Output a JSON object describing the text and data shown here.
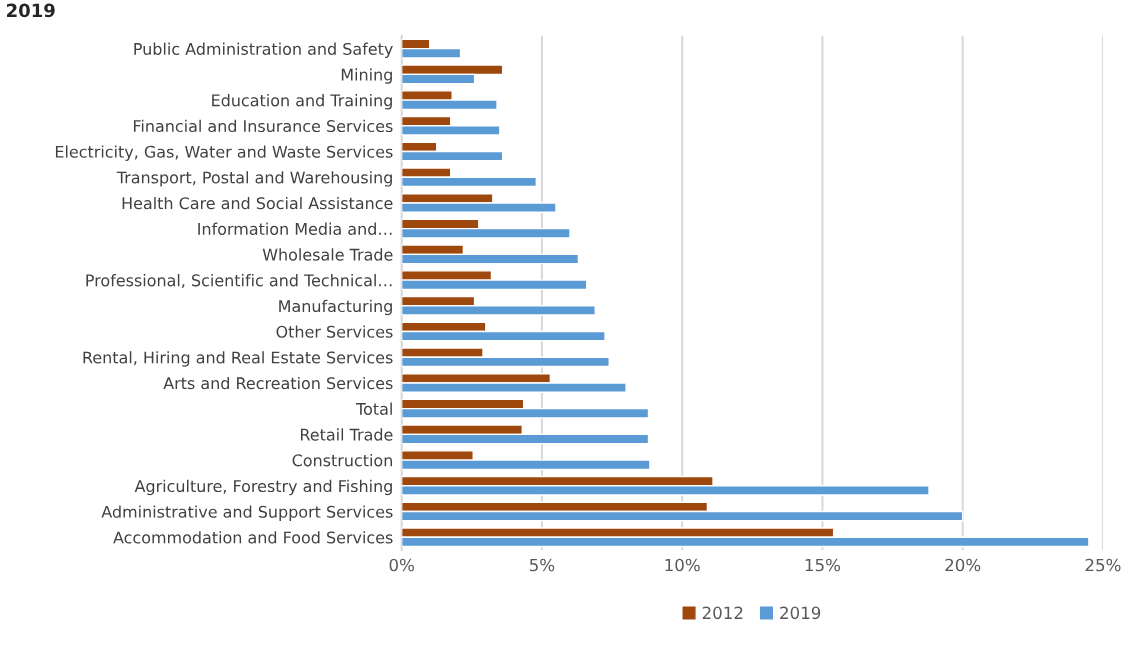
{
  "chart_data": {
    "type": "bar",
    "orientation": "horizontal",
    "title": "2019",
    "categories": [
      "Public Administration and Safety",
      "Mining",
      "Education and Training",
      "Financial and Insurance Services",
      "Electricity, Gas, Water and Waste Services",
      "Transport, Postal and Warehousing",
      "Health Care and Social Assistance",
      "Information Media and…",
      "Wholesale Trade",
      "Professional, Scientific and Technical…",
      "Manufacturing",
      "Other Services",
      "Rental, Hiring and Real Estate Services",
      "Arts and Recreation Services",
      "Total",
      "Retail Trade",
      "Construction",
      "Agriculture, Forestry and Fishing",
      "Administrative and Support Services",
      "Accommodation and Food Services"
    ],
    "series": [
      {
        "name": "2012",
        "color": "#9e480e",
        "values": [
          1.0,
          3.6,
          1.8,
          1.75,
          1.25,
          1.75,
          3.25,
          2.75,
          2.2,
          3.2,
          2.6,
          3.0,
          2.9,
          5.3,
          4.35,
          4.3,
          2.55,
          11.1,
          10.9,
          15.4
        ]
      },
      {
        "name": "2019",
        "color": "#5b9bd5",
        "values": [
          2.1,
          2.6,
          3.4,
          3.5,
          3.6,
          4.8,
          5.5,
          6.0,
          6.3,
          6.6,
          6.9,
          7.25,
          7.4,
          8.0,
          8.8,
          8.8,
          8.85,
          18.8,
          20.0,
          24.5
        ]
      }
    ],
    "xlim": [
      0,
      25
    ],
    "xticks": [
      {
        "value": 0,
        "label": "0%"
      },
      {
        "value": 5,
        "label": "5%"
      },
      {
        "value": 10,
        "label": "10%"
      },
      {
        "value": 15,
        "label": "15%"
      },
      {
        "value": 20,
        "label": "20%"
      },
      {
        "value": 25,
        "label": "25%"
      }
    ],
    "grid": "x",
    "legend": "bottom"
  }
}
